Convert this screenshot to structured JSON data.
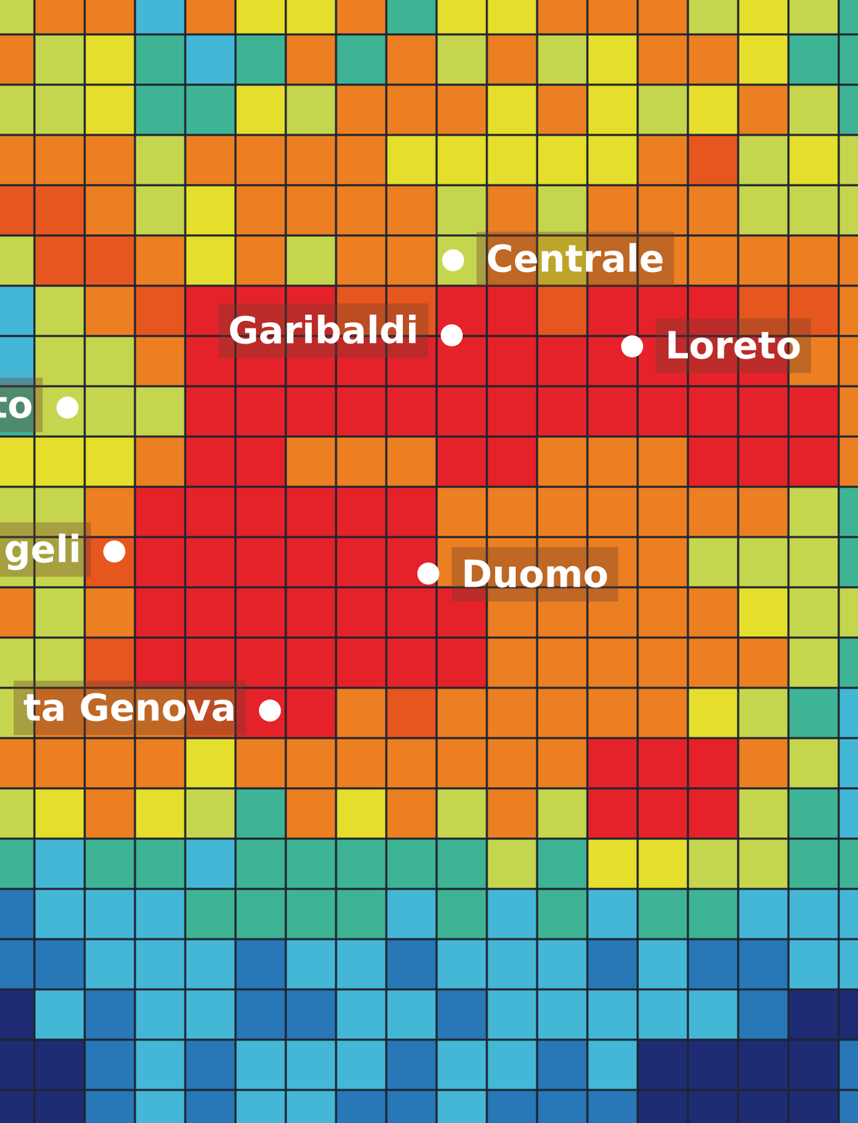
{
  "labels": [
    {
      "text": "Centrale"
    },
    {
      "text": "Garibaldi"
    },
    {
      "text": "Loreto"
    },
    {
      "text": "to"
    },
    {
      "text": "geli"
    },
    {
      "text": "Duomo"
    },
    {
      "text": "ta Genova"
    }
  ]
}
